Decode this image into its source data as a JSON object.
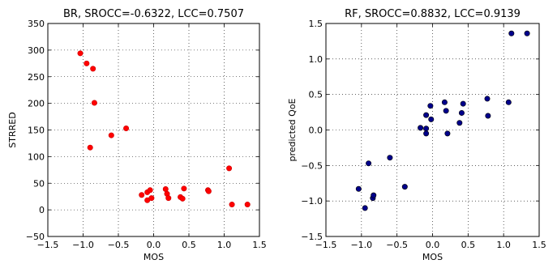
{
  "chart_data": [
    {
      "type": "scatter",
      "title": "BR, SROCC=-0.6322, LCC=0.7507",
      "xlabel": "MOS",
      "ylabel": "STRRED",
      "xlim": [
        -1.5,
        1.5
      ],
      "ylim": [
        -50,
        350
      ],
      "xticks": [
        -1.5,
        -1.0,
        -0.5,
        0.0,
        0.5,
        1.0,
        1.5
      ],
      "xtick_labels": [
        "−1.5",
        "−1.0",
        "−0.5",
        "0.0",
        "0.5",
        "1.0",
        "1.5"
      ],
      "yticks": [
        -50,
        0,
        50,
        100,
        150,
        200,
        250,
        300,
        350
      ],
      "ytick_labels": [
        "−50",
        "0",
        "50",
        "100",
        "150",
        "200",
        "250",
        "300",
        "350"
      ],
      "grid": true,
      "marker_color": "#ff0000",
      "marker_edge": "#cc0000",
      "points": [
        {
          "x": -1.04,
          "y": 294
        },
        {
          "x": -0.95,
          "y": 275
        },
        {
          "x": -0.86,
          "y": 265
        },
        {
          "x": -0.84,
          "y": 201
        },
        {
          "x": -0.39,
          "y": 153
        },
        {
          "x": -0.6,
          "y": 140
        },
        {
          "x": -0.9,
          "y": 117
        },
        {
          "x": 1.07,
          "y": 78
        },
        {
          "x": -0.17,
          "y": 28
        },
        {
          "x": -0.09,
          "y": 33
        },
        {
          "x": -0.05,
          "y": 37
        },
        {
          "x": -0.09,
          "y": 18
        },
        {
          "x": -0.03,
          "y": 22
        },
        {
          "x": 0.17,
          "y": 39
        },
        {
          "x": 0.19,
          "y": 30
        },
        {
          "x": 0.21,
          "y": 22
        },
        {
          "x": 0.38,
          "y": 24
        },
        {
          "x": 0.41,
          "y": 21
        },
        {
          "x": 0.43,
          "y": 40
        },
        {
          "x": 0.77,
          "y": 37
        },
        {
          "x": 0.78,
          "y": 35
        },
        {
          "x": 1.11,
          "y": 10
        },
        {
          "x": 1.33,
          "y": 10
        }
      ]
    },
    {
      "type": "scatter",
      "title": "RF, SROCC=0.8832, LCC=0.9139",
      "xlabel": "MOS",
      "ylabel": "predicted QoE",
      "xlim": [
        -1.5,
        1.5
      ],
      "ylim": [
        -1.5,
        1.5
      ],
      "xticks": [
        -1.5,
        -1.0,
        -0.5,
        0.0,
        0.5,
        1.0,
        1.5
      ],
      "xtick_labels": [
        "−1.5",
        "−1.0",
        "−0.5",
        "0.0",
        "0.5",
        "1.0",
        "1.5"
      ],
      "yticks": [
        -1.5,
        -1.0,
        -0.5,
        0.0,
        0.5,
        1.0,
        1.5
      ],
      "ytick_labels": [
        "−1.5",
        "−1.0",
        "−0.5",
        "0.0",
        "0.5",
        "1.0",
        "1.5"
      ],
      "grid": true,
      "marker_color": "#00008b",
      "marker_edge": "#000000",
      "points": [
        {
          "x": -1.04,
          "y": -0.83
        },
        {
          "x": -0.95,
          "y": -1.1
        },
        {
          "x": -0.9,
          "y": -0.47
        },
        {
          "x": -0.84,
          "y": -0.96
        },
        {
          "x": -0.83,
          "y": -0.92
        },
        {
          "x": -0.6,
          "y": -0.39
        },
        {
          "x": -0.39,
          "y": -0.8
        },
        {
          "x": -0.17,
          "y": 0.03
        },
        {
          "x": -0.09,
          "y": 0.02
        },
        {
          "x": -0.09,
          "y": -0.05
        },
        {
          "x": -0.09,
          "y": 0.21
        },
        {
          "x": -0.03,
          "y": 0.34
        },
        {
          "x": -0.02,
          "y": 0.15
        },
        {
          "x": 0.17,
          "y": 0.39
        },
        {
          "x": 0.19,
          "y": 0.27
        },
        {
          "x": 0.21,
          "y": -0.05
        },
        {
          "x": 0.38,
          "y": 0.1
        },
        {
          "x": 0.41,
          "y": 0.24
        },
        {
          "x": 0.43,
          "y": 0.37
        },
        {
          "x": 0.77,
          "y": 0.44
        },
        {
          "x": 0.78,
          "y": 0.2
        },
        {
          "x": 1.07,
          "y": 0.39
        },
        {
          "x": 1.11,
          "y": 1.36
        },
        {
          "x": 1.33,
          "y": 1.36
        }
      ]
    }
  ]
}
